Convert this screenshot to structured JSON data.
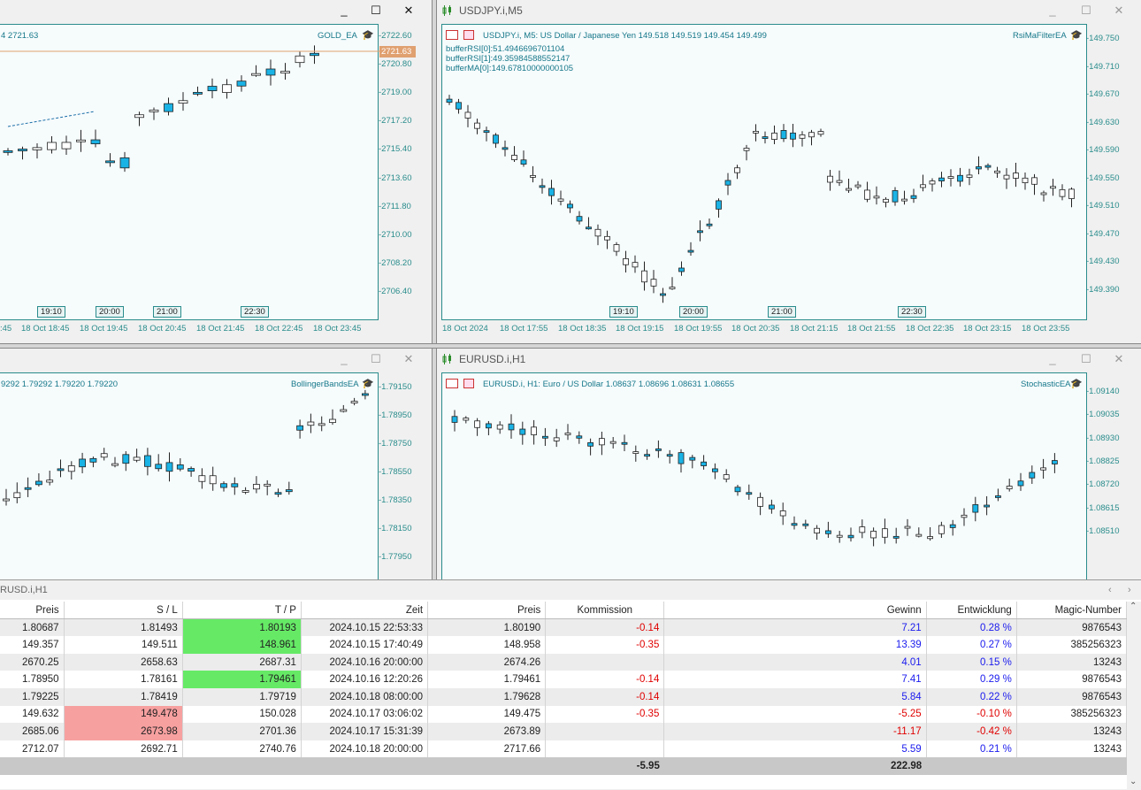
{
  "windows": [
    {
      "id": "gold",
      "title": "",
      "info": "4 2721.63",
      "ea": "GOLD_EA",
      "price_tag": "2721.63",
      "yticks": [
        "2722.60",
        "2720.80",
        "2719.00",
        "2717.20",
        "2715.40",
        "2713.60",
        "2711.80",
        "2710.00",
        "2708.20",
        "2706.40"
      ],
      "xticks": [
        ":45",
        "18 Oct 18:45",
        "18 Oct 19:45",
        "18 Oct 20:45",
        "18 Oct 21:45",
        "18 Oct 22:45",
        "18 Oct 23:45"
      ],
      "markers": [
        "19:10",
        "20:00",
        "21:00",
        "22:30"
      ]
    },
    {
      "id": "usdjpy",
      "title": "USDJPY.i,M5",
      "info": "USDJPY.i, M5:  US Dollar / Japanese Yen  149.518 149.519 149.454 149.499",
      "ea": "RsiMaFilterEA",
      "debug": [
        "bufferRSI[0]:51.4946696701104",
        "bufferRSI[1]:49.35984588552147",
        "bufferMA[0]:149.67810000000105"
      ],
      "yticks": [
        "149.750",
        "149.710",
        "149.670",
        "149.630",
        "149.590",
        "149.550",
        "149.510",
        "149.470",
        "149.430",
        "149.390"
      ],
      "xticks": [
        "18 Oct 2024",
        "18 Oct 17:55",
        "18 Oct 18:35",
        "18 Oct 19:15",
        "18 Oct 19:55",
        "18 Oct 20:35",
        "18 Oct 21:15",
        "18 Oct 21:55",
        "18 Oct 22:35",
        "18 Oct 23:15",
        "18 Oct 23:55"
      ],
      "markers": [
        "19:10",
        "20:00",
        "21:00",
        "22:30"
      ]
    },
    {
      "id": "gbp",
      "title": "",
      "info": "9292 1.79292 1.79220 1.79220",
      "ea": "BollingerBandsEA",
      "yticks": [
        "1.79150",
        "1.78950",
        "1.78750",
        "1.78550",
        "1.78350",
        "1.78150",
        "1.77950"
      ]
    },
    {
      "id": "eurusd",
      "title": "EURUSD.i,H1",
      "info": "EURUSD.i, H1:  Euro / US Dollar  1.08637 1.08696 1.08631 1.08655",
      "ea": "StochasticEA",
      "yticks": [
        "1.09140",
        "1.09035",
        "1.08930",
        "1.08825",
        "1.08720",
        "1.08615",
        "1.08510"
      ]
    }
  ],
  "window_buttons": {
    "minimize": "_",
    "maximize": "☐",
    "close": "✕"
  },
  "toolbox": {
    "tab": "RUSD.i,H1",
    "columns": [
      "Preis",
      "S / L",
      "T / P",
      "Zeit",
      "Preis",
      "Kommission",
      "Gewinn",
      "Entwicklung",
      "Magic-Number"
    ],
    "rows": [
      [
        "1.80687",
        "1.81493",
        "1.80193",
        "2024.10.15 22:53:33",
        "1.80190",
        "-0.14",
        "7.21",
        "0.28 %",
        "9876543"
      ],
      [
        "149.357",
        "149.511",
        "148.961",
        "2024.10.15 17:40:49",
        "148.958",
        "-0.35",
        "13.39",
        "0.27 %",
        "385256323"
      ],
      [
        "2670.25",
        "2658.63",
        "2687.31",
        "2024.10.16 20:00:00",
        "2674.26",
        "",
        "4.01",
        "0.15 %",
        "13243"
      ],
      [
        "1.78950",
        "1.78161",
        "1.79461",
        "2024.10.16 12:20:26",
        "1.79461",
        "-0.14",
        "7.41",
        "0.29 %",
        "9876543"
      ],
      [
        "1.79225",
        "1.78419",
        "1.79719",
        "2024.10.18 08:00:00",
        "1.79628",
        "-0.14",
        "5.84",
        "0.22 %",
        "9876543"
      ],
      [
        "149.632",
        "149.478",
        "150.028",
        "2024.10.17 03:06:02",
        "149.475",
        "-0.35",
        "-5.25",
        "-0.10 %",
        "385256323"
      ],
      [
        "2685.06",
        "2673.98",
        "2701.36",
        "2024.10.17 15:31:39",
        "2673.89",
        "",
        "-11.17",
        "-0.42 %",
        "13243"
      ],
      [
        "2712.07",
        "2692.71",
        "2740.76",
        "2024.10.18 20:00:00",
        "2717.66",
        "",
        "5.59",
        "0.21 %",
        "13243"
      ]
    ],
    "highlight": {
      "tp_green": [
        0,
        1,
        3
      ],
      "sl_red": [
        5,
        6
      ]
    },
    "totals": {
      "commission": "-5.95",
      "profit": "222.98"
    }
  },
  "colors": {
    "bull_candle": "#ffffff",
    "bear_candle": "#1ab3e6",
    "axis": "#2a8c8c",
    "price_tag": "#e0a070"
  }
}
